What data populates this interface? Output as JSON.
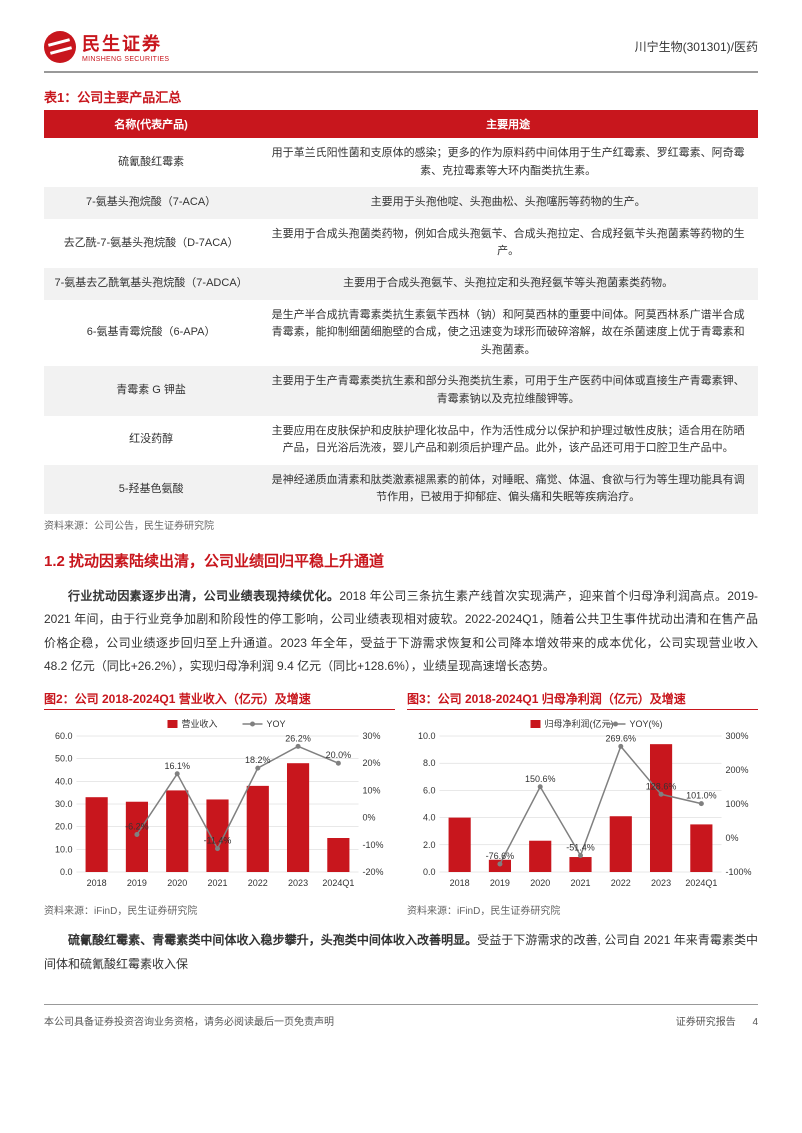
{
  "header": {
    "logo_cn": "民生证券",
    "logo_en": "MINSHENG SECURITIES",
    "right": "川宁生物(301301)/医药"
  },
  "table": {
    "title": "表1：公司主要产品汇总",
    "col1": "名称(代表产品)",
    "col2": "主要用途",
    "rows": [
      {
        "name": "硫氰酸红霉素",
        "use": "用于革兰氏阳性菌和支原体的感染；更多的作为原料药中间体用于生产红霉素、罗红霉素、阿奇霉素、克拉霉素等大环内酯类抗生素。"
      },
      {
        "name": "7-氨基头孢烷酸（7-ACA）",
        "use": "主要用于头孢他啶、头孢曲松、头孢噻肟等药物的生产。"
      },
      {
        "name": "去乙酰-7-氨基头孢烷酸（D-7ACA）",
        "use": "主要用于合成头孢菌类药物，例如合成头孢氨苄、合成头孢拉定、合成羟氨苄头孢菌素等药物的生产。"
      },
      {
        "name": "7-氨基去乙酰氧基头孢烷酸（7-ADCA）",
        "use": "主要用于合成头孢氨苄、头孢拉定和头孢羟氨苄等头孢菌素类药物。"
      },
      {
        "name": "6-氨基青霉烷酸（6-APA）",
        "use": "是生产半合成抗青霉素类抗生素氨苄西林（钠）和阿莫西林的重要中间体。阿莫西林系广谱半合成青霉素，能抑制细菌细胞壁的合成，使之迅速变为球形而破碎溶解，故在杀菌速度上优于青霉素和头孢菌素。"
      },
      {
        "name": "青霉素 G 钾盐",
        "use": "主要用于生产青霉素类抗生素和部分头孢类抗生素，可用于生产医药中间体或直接生产青霉素钾、青霉素钠以及克拉维酸钾等。"
      },
      {
        "name": "红没药醇",
        "use": "主要应用在皮肤保护和皮肤护理化妆品中，作为活性成分以保护和护理过敏性皮肤；适合用在防晒产品，日光浴后洗液，婴儿产品和剃须后护理产品。此外，该产品还可用于口腔卫生产品中。"
      },
      {
        "name": "5-羟基色氨酸",
        "use": "是神经递质血清素和肽类激素褪黑素的前体，对睡眠、痛觉、体温、食欲与行为等生理功能具有调节作用，已被用于抑郁症、偏头痛和失眠等疾病治疗。"
      }
    ],
    "source": "资料来源：公司公告，民生证券研究院"
  },
  "section": {
    "title": "1.2 扰动因素陆续出清，公司业绩回归平稳上升通道",
    "p1_bold": "行业扰动因素逐步出清，公司业绩表现持续优化。",
    "p1_rest": "2018 年公司三条抗生素产线首次实现满产，迎来首个归母净利润高点。2019-2021 年间，由于行业竞争加剧和阶段性的停工影响，公司业绩表现相对疲软。2022-2024Q1，随着公共卫生事件扰动出清和在售产品价格企稳，公司业绩逐步回归至上升通道。2023 年全年，受益于下游需求恢复和公司降本增效带来的成本优化，公司实现营业收入 48.2 亿元（同比+26.2%），实现归母净利润 9.4 亿元（同比+128.6%），业绩呈现高速增长态势。",
    "p2_bold": "硫氰酸红霉素、青霉素类中间体收入稳步攀升，头孢类中间体收入改善明显。",
    "p2_rest": "受益于下游需求的改善, 公司自 2021 年来青霉素类中间体和硫氰酸红霉素收入保"
  },
  "chart2": {
    "title": "图2：公司 2018-2024Q1 营业收入（亿元）及增速",
    "legend_bar": "营业收入",
    "legend_line": "YOY",
    "categories": [
      "2018",
      "2019",
      "2020",
      "2021",
      "2022",
      "2023",
      "2024Q1"
    ],
    "bar_values": [
      33,
      31,
      36,
      32,
      38,
      48,
      15
    ],
    "line_values": [
      null,
      -6.2,
      16.1,
      -11.4,
      18.2,
      26.2,
      20.0
    ],
    "line_labels": [
      "",
      "-6.2%",
      "16.1%",
      "-11.4%",
      "18.2%",
      "26.2%",
      "20.0%"
    ],
    "y_left": {
      "min": 0,
      "max": 60,
      "step": 10
    },
    "y_right": {
      "min": -20,
      "max": 30,
      "step": 10,
      "suffix": "%"
    },
    "bar_color": "#c8161d",
    "line_color": "#808080",
    "grid_color": "#d0d0d0",
    "font_size": 9,
    "source": "资料来源：iFinD，民生证券研究院"
  },
  "chart3": {
    "title": "图3：公司 2018-2024Q1 归母净利润（亿元）及增速",
    "legend_bar": "归母净利润(亿元)",
    "legend_line": "YOY(%)",
    "categories": [
      "2018",
      "2019",
      "2020",
      "2021",
      "2022",
      "2023",
      "2024Q1"
    ],
    "bar_values": [
      4.0,
      0.9,
      2.3,
      1.1,
      4.1,
      9.4,
      3.5
    ],
    "line_values": [
      null,
      -76.6,
      150.6,
      -51.4,
      269.6,
      128.6,
      101.0
    ],
    "line_labels": [
      "",
      "-76.6%",
      "150.6%",
      "-51.4%",
      "269.6%",
      "128.6%",
      "101.0%"
    ],
    "y_left": {
      "min": 0,
      "max": 10,
      "step": 2
    },
    "y_right": {
      "min": -100,
      "max": 300,
      "step": 100,
      "suffix": "%"
    },
    "bar_color": "#c8161d",
    "line_color": "#808080",
    "grid_color": "#d0d0d0",
    "font_size": 9,
    "source": "资料来源：iFinD，民生证券研究院"
  },
  "footer": {
    "left": "本公司具备证券投资咨询业务资格，请务必阅读最后一页免责声明",
    "right": "证券研究报告",
    "page": "4"
  }
}
